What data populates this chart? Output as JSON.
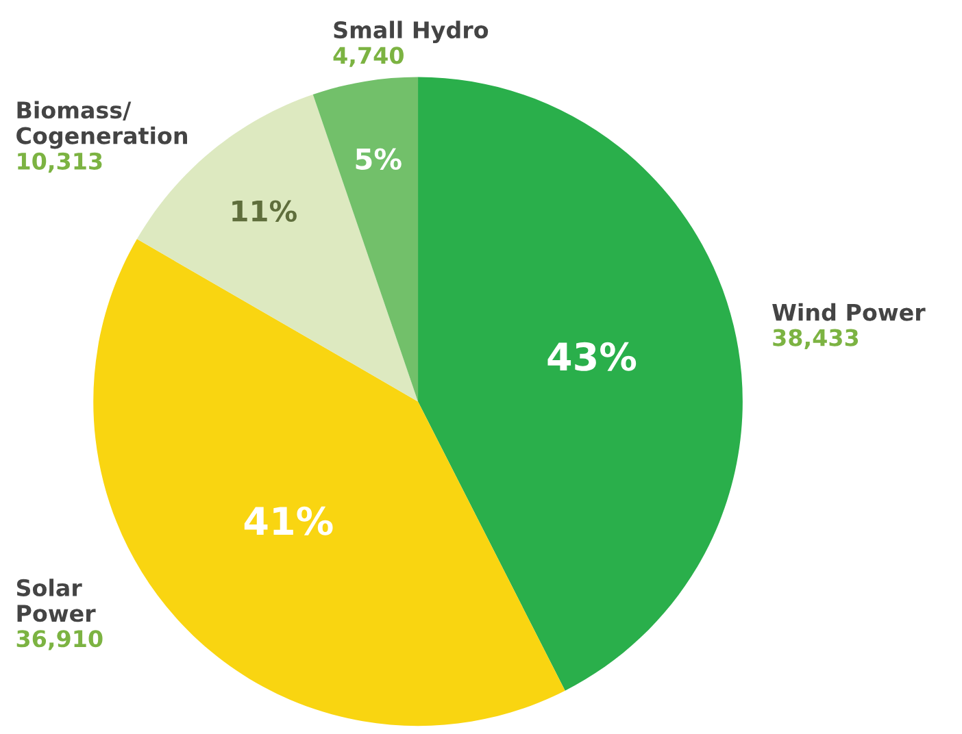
{
  "chart_data": {
    "type": "pie",
    "categories": [
      "Wind Power",
      "Solar\nPower",
      "Biomass/\nCogeneration",
      "Small Hydro"
    ],
    "values": [
      38433,
      36910,
      10313,
      4740
    ],
    "value_labels": [
      "38,433",
      "36,910",
      "10,313",
      "4,740"
    ],
    "annotations": [
      "43%",
      "41%",
      "11%",
      "5%"
    ],
    "colors": [
      "#2aaf4b",
      "#f9d511",
      "#dde9c0",
      "#72c06a"
    ]
  }
}
